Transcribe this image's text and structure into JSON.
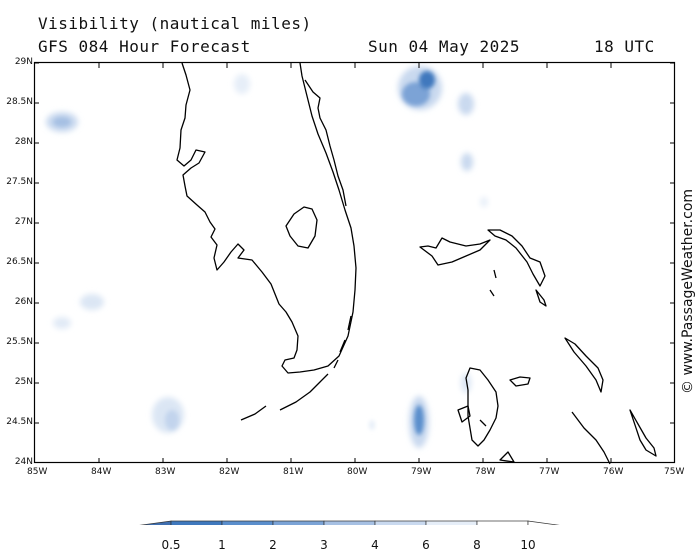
{
  "header": {
    "variable": "Visibility (nautical miles)",
    "model": "GFS 084 Hour Forecast",
    "date": "Sun 04 May 2025",
    "time": "18 UTC"
  },
  "credit": "© www.PassageWeather.com",
  "axes": {
    "lat_labels": [
      "29N",
      "28.5N",
      "28N",
      "27.5N",
      "27N",
      "26.5N",
      "26N",
      "25.5N",
      "25N",
      "24.5N",
      "24N"
    ],
    "lon_labels": [
      "85W",
      "84W",
      "83W",
      "82W",
      "81W",
      "80W",
      "79W",
      "78W",
      "77W",
      "76W",
      "75W"
    ]
  },
  "colorbar": {
    "labels": [
      "0.5",
      "1",
      "2",
      "3",
      "4",
      "6",
      "8",
      "10"
    ],
    "colors": [
      "#3f6fb0",
      "#3f78bd",
      "#5a8ecc",
      "#7ba3d6",
      "#a6c0e3",
      "#c9d9ef",
      "#e6eef8",
      "#ffffff"
    ]
  },
  "colors": {
    "land_outline": "#000000",
    "low_vis_dark": "#3f78bd",
    "low_vis_light": "#c9d9ef"
  }
}
